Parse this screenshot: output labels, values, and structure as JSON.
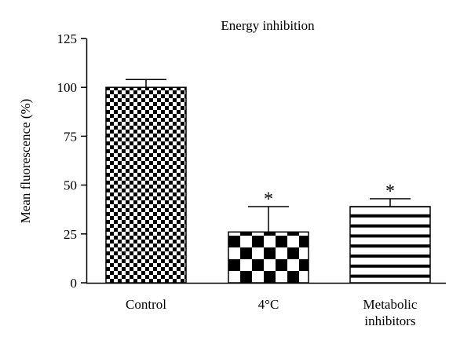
{
  "chart_data": {
    "type": "bar",
    "title": "Energy inhibition",
    "xlabel": "",
    "ylabel": "Mean fluorescence (%)",
    "ylim": [
      0,
      125
    ],
    "yticks": [
      0,
      25,
      50,
      75,
      100,
      125
    ],
    "categories": [
      "Control",
      "4°C",
      "Metabolic inhibitors"
    ],
    "category_lines": [
      [
        "Control"
      ],
      [
        "4°C"
      ],
      [
        "Metabolic",
        "inhibitors"
      ]
    ],
    "values": [
      100,
      26,
      39
    ],
    "error_upper": [
      104,
      39,
      43
    ],
    "significance": [
      "",
      "*",
      "*"
    ],
    "patterns": [
      "fine-checkerboard",
      "coarse-checkerboard",
      "horizontal-stripes"
    ],
    "grid": false,
    "legend": "none",
    "colors": {
      "bar_fill": "#ffffff",
      "pattern": "#000000",
      "axis": "#000000"
    }
  }
}
